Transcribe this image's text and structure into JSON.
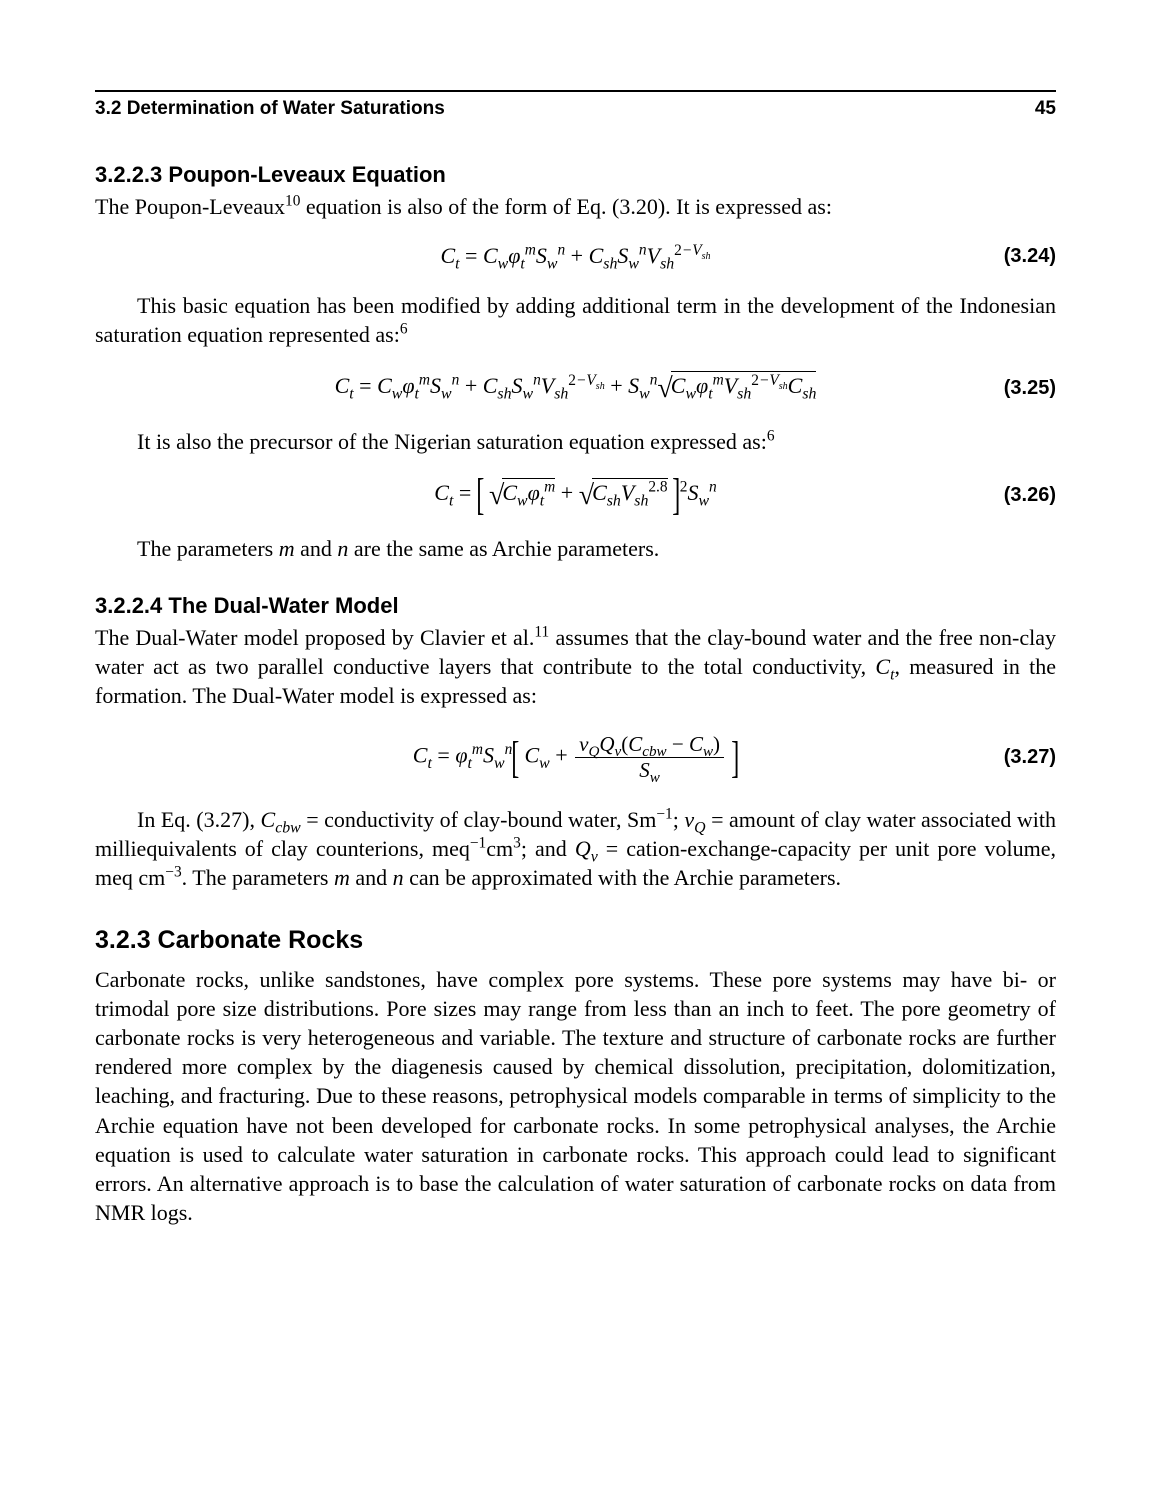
{
  "header": {
    "section": "3.2   Determination of Water Saturations",
    "page_number": "45"
  },
  "sec_3223": {
    "heading": "3.2.2.3   Poupon-Leveaux Equation",
    "p1_a": "The Poupon-Leveaux",
    "p1_sup": "10",
    "p1_b": " equation is also of the form of Eq. (3.20). It is expressed as:",
    "eq324_num": "(3.24)",
    "p2": "This basic equation has been modified by adding additional term in the development of the Indonesian saturation equation represented as:",
    "p2_sup": "6",
    "eq325_num": "(3.25)",
    "p3": "It is also the precursor of the Nigerian saturation equation expressed as:",
    "p3_sup": "6",
    "eq326_num": "(3.26)",
    "p4_a": "The parameters ",
    "p4_m": "m",
    "p4_b": " and ",
    "p4_n": "n",
    "p4_c": " are the same as Archie parameters."
  },
  "sec_3224": {
    "heading": "3.2.2.4   The Dual-Water Model",
    "p1_a": "The Dual-Water model proposed by Clavier et al.",
    "p1_sup": "11",
    "p1_b": " assumes that the clay-bound water and the free non-clay water act as two parallel conductive layers that contribute to the total conductivity, ",
    "p1_ct": "C",
    "p1_csub": "t",
    "p1_c": ", measured in the formation. The Dual-Water model is expressed as:",
    "eq327_num": "(3.27)",
    "p2": "In Eq. (3.27), C_{cbw} = conductivity of clay-bound water, Sm^{-1}; v_Q = amount of clay water associated with milliequivalents of clay counterions, meq^{-1}cm^{3}; and Q_v = cation-exchange-capacity per unit pore volume, meq cm^{-3}. The parameters m and n can be approximated with the Archie parameters."
  },
  "sec_323": {
    "heading": "3.2.3   Carbonate Rocks",
    "p1": "Carbonate rocks, unlike sandstones, have complex pore systems. These pore systems may have bi- or trimodal pore size distributions. Pore sizes may range from less than an inch to feet. The pore geometry of carbonate rocks is very heterogeneous and variable. The texture and structure of carbonate rocks are further rendered more complex by the diagenesis caused by chemical dissolution, precipitation, dolomitization, leaching, and fracturing. Due to these reasons, petrophysical models comparable in terms of simplicity to the Archie equation have not been developed for carbonate rocks. In some petrophysical analyses, the Archie equation is used to calculate water saturation in carbonate rocks. This approach could lead to significant errors. An alternative approach is to base the calculation of water saturation of carbonate rocks on data from NMR logs."
  }
}
